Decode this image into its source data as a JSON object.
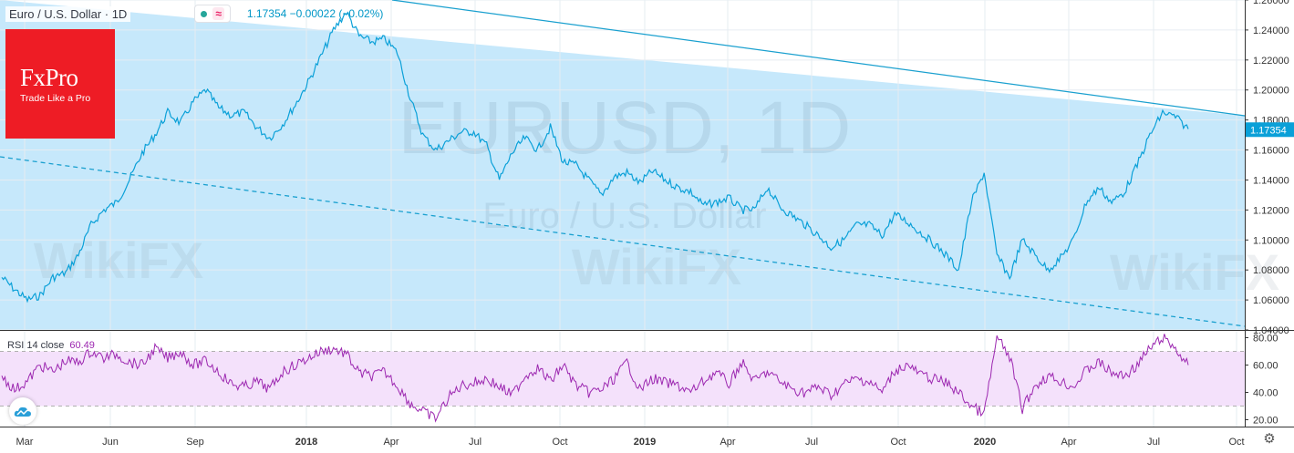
{
  "header": {
    "symbol_title": "Euro / U.S. Dollar · 1D",
    "indicator_icon": "wave-icon",
    "price_line": "1.17354 −0.00022 (−0.02%)"
  },
  "logo": {
    "brand": "FxPro",
    "tagline": "Trade Like a Pro"
  },
  "watermark": {
    "symbol": "EURUSD, 1D",
    "name": "Euro / U.S. Dollar",
    "wikifx": "WikiFX"
  },
  "rsi": {
    "label": "RSI 14 close",
    "value": "60.49"
  },
  "colors": {
    "price_line": "#0aa0d8",
    "channel_fill": "#c6e8fb",
    "rsi_line": "#9c27b0",
    "rsi_band": "#f4e1fb"
  },
  "chart_data": [
    {
      "type": "line",
      "title": "Euro / U.S. Dollar · 1D",
      "x_ticks": [
        "Mar",
        "Jun",
        "Sep",
        "2018",
        "Apr",
        "Jul",
        "Oct",
        "2019",
        "Apr",
        "Jul",
        "Oct",
        "2020",
        "Apr",
        "Jul",
        "Oct"
      ],
      "y_ticks": [
        "1.26000",
        "1.24000",
        "1.22000",
        "1.20000",
        "1.18000",
        "1.16000",
        "1.14000",
        "1.12000",
        "1.10000",
        "1.08000",
        "1.06000",
        "1.04000"
      ],
      "ylim": [
        1.04,
        1.26
      ],
      "grid": true,
      "series": [
        {
          "values": [
            1.075,
            1.067,
            1.06,
            1.063,
            1.075,
            1.078,
            1.09,
            1.11,
            1.12,
            1.125,
            1.14,
            1.158,
            1.17,
            1.185,
            1.178,
            1.192,
            1.2,
            1.188,
            1.183,
            1.185,
            1.175,
            1.168,
            1.177,
            1.19,
            1.205,
            1.222,
            1.24,
            1.252,
            1.236,
            1.232,
            1.234,
            1.225,
            1.195,
            1.17,
            1.16,
            1.166,
            1.172,
            1.172,
            1.163,
            1.14,
            1.158,
            1.168,
            1.16,
            1.175,
            1.152,
            1.15,
            1.14,
            1.13,
            1.142,
            1.145,
            1.138,
            1.146,
            1.14,
            1.135,
            1.132,
            1.123,
            1.125,
            1.128,
            1.12,
            1.12,
            1.135,
            1.122,
            1.116,
            1.11,
            1.103,
            1.095,
            1.1,
            1.11,
            1.11,
            1.103,
            1.117,
            1.112,
            1.105,
            1.098,
            1.09,
            1.08,
            1.125,
            1.145,
            1.09,
            1.075,
            1.1,
            1.09,
            1.08,
            1.088,
            1.1,
            1.125,
            1.135,
            1.125,
            1.132,
            1.15,
            1.17,
            1.185,
            1.182,
            1.174
          ]
        }
      ],
      "last_value": 1.17354
    },
    {
      "type": "line",
      "title": "RSI 14 close",
      "y_ticks": [
        "80.00",
        "60.00",
        "40.00",
        "20.00"
      ],
      "ylim": [
        15,
        85
      ],
      "bands": [
        30,
        70
      ],
      "series": [
        {
          "values": [
            52,
            42,
            48,
            60,
            55,
            63,
            62,
            70,
            65,
            68,
            62,
            60,
            72,
            65,
            70,
            60,
            63,
            55,
            46,
            44,
            48,
            42,
            55,
            60,
            65,
            70,
            72,
            68,
            54,
            52,
            55,
            45,
            32,
            26,
            21,
            36,
            45,
            47,
            50,
            44,
            38,
            52,
            58,
            48,
            60,
            45,
            40,
            42,
            50,
            62,
            42,
            50,
            47,
            45,
            40,
            48,
            55,
            46,
            62,
            48,
            55,
            48,
            42,
            40,
            44,
            38,
            46,
            50,
            48,
            40,
            56,
            60,
            53,
            50,
            47,
            40,
            30,
            24,
            80,
            66,
            28,
            45,
            52,
            48,
            44,
            56,
            62,
            54,
            52,
            60,
            72,
            80,
            72,
            60
          ]
        }
      ],
      "last_value": 60.49
    }
  ]
}
